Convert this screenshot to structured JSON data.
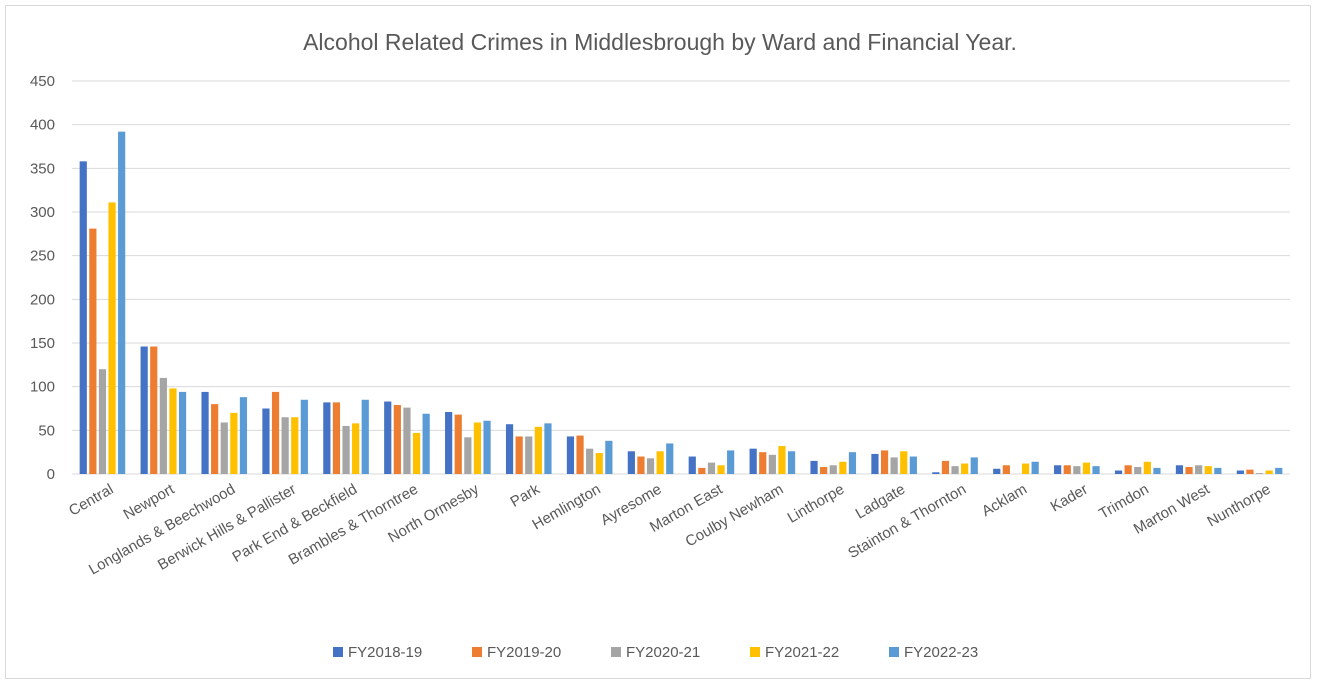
{
  "chart_data": {
    "type": "bar",
    "title": "Alcohol Related Crimes in Middlesbrough by Ward and Financial Year.",
    "xlabel": "",
    "ylabel": "",
    "ylim": [
      0,
      450
    ],
    "yticks": [
      0,
      50,
      100,
      150,
      200,
      250,
      300,
      350,
      400,
      450
    ],
    "grid": true,
    "legend_position": "bottom",
    "categories": [
      "Central",
      "Newport",
      "Longlands & Beechwood",
      "Berwick Hills & Pallister",
      "Park End & Beckfield",
      "Brambles & Thorntree",
      "North Ormesby",
      "Park",
      "Hemlington",
      "Ayresome",
      "Marton East",
      "Coulby Newham",
      "Linthorpe",
      "Ladgate",
      "Stainton & Thornton",
      "Acklam",
      "Kader",
      "Trimdon",
      "Marton West",
      "Nunthorpe"
    ],
    "series": [
      {
        "name": "FY2018-19",
        "color": "#4472c4",
        "values": [
          358,
          146,
          94,
          75,
          82,
          83,
          71,
          57,
          43,
          26,
          20,
          29,
          15,
          23,
          2,
          6,
          10,
          4,
          10,
          4
        ]
      },
      {
        "name": "FY2019-20",
        "color": "#ed7d31",
        "values": [
          281,
          146,
          80,
          94,
          82,
          79,
          68,
          43,
          44,
          20,
          7,
          25,
          8,
          27,
          15,
          10,
          10,
          10,
          8,
          5
        ]
      },
      {
        "name": "FY2020-21",
        "color": "#a5a5a5",
        "values": [
          120,
          110,
          59,
          65,
          55,
          76,
          42,
          43,
          29,
          18,
          13,
          22,
          10,
          19,
          9,
          0,
          9,
          8,
          10,
          1
        ]
      },
      {
        "name": "FY2021-22",
        "color": "#ffc000",
        "values": [
          311,
          98,
          70,
          65,
          58,
          47,
          59,
          54,
          24,
          26,
          10,
          32,
          14,
          26,
          12,
          12,
          13,
          14,
          9,
          4
        ]
      },
      {
        "name": "FY2022-23",
        "color": "#5b9bd5",
        "values": [
          392,
          94,
          88,
          85,
          85,
          69,
          61,
          58,
          38,
          35,
          27,
          26,
          25,
          20,
          19,
          14,
          9,
          7,
          7,
          7
        ]
      }
    ]
  }
}
